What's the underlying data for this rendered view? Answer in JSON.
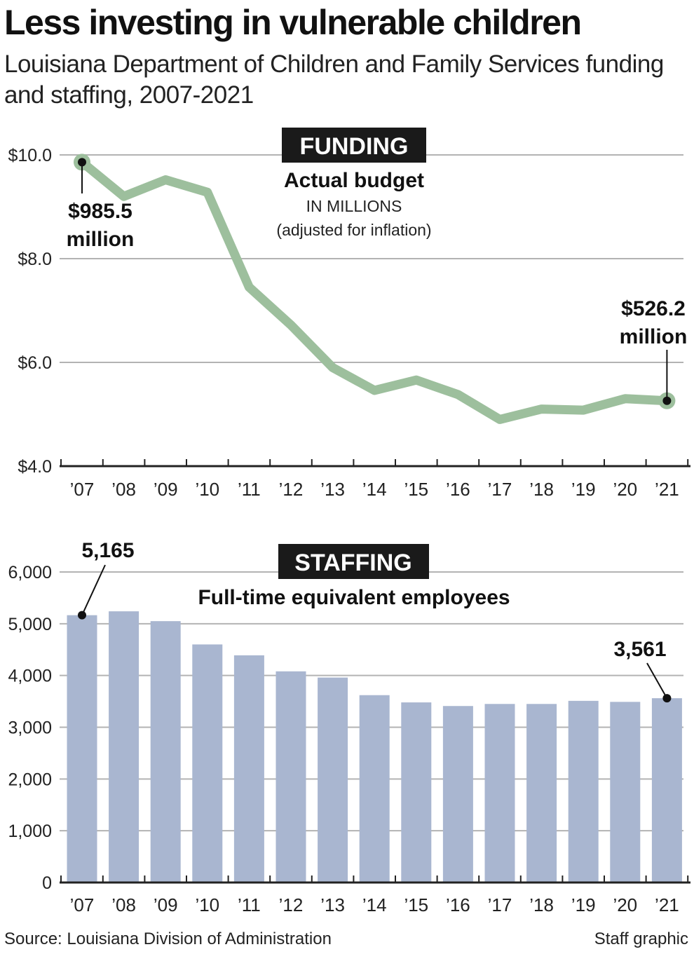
{
  "header": {
    "title": "Less investing in vulnerable children",
    "subtitle": "Louisiana Department of Children and Family Services funding and staffing, 2007-2021"
  },
  "footer": {
    "source": "Source: Louisiana Division of Administration",
    "credit": "Staff graphic"
  },
  "colors": {
    "line": "#9dbf9d",
    "bar": "#a9b6d0",
    "tag_bg": "#1a1a1a",
    "grid": "#b3b3b3"
  },
  "chart_data": [
    {
      "type": "line",
      "title": "FUNDING",
      "subtitle": "Actual budget",
      "note_1": "IN MILLIONS",
      "note_2": "(adjusted for inflation)",
      "categories": [
        "’07",
        "’08",
        "’09",
        "’10",
        "’11",
        "’12",
        "’13",
        "’14",
        "’15",
        "’16",
        "’17",
        "’18",
        "’19",
        "’20",
        "’21"
      ],
      "y_ticks": [
        "$10.0",
        "$8.0",
        "$6.0",
        "$4.0"
      ],
      "ylim": [
        4.0,
        10.0
      ],
      "series": [
        {
          "values": [
            9.86,
            9.2,
            9.52,
            9.28,
            7.45,
            6.72,
            5.9,
            5.46,
            5.66,
            5.38,
            4.9,
            5.1,
            5.08,
            5.3,
            5.26
          ]
        }
      ],
      "annotations": [
        {
          "index": 0,
          "line1": "$985.5",
          "line2": "million"
        },
        {
          "index": 14,
          "line1": "$526.2",
          "line2": "million"
        }
      ],
      "grid": true
    },
    {
      "type": "bar",
      "title": "STAFFING",
      "subtitle": "Full-time equivalent employees",
      "categories": [
        "’07",
        "’08",
        "’09",
        "’10",
        "’11",
        "’12",
        "’13",
        "’14",
        "’15",
        "’16",
        "’17",
        "’18",
        "’19",
        "’20",
        "’21"
      ],
      "y_ticks": [
        "6,000",
        "5,000",
        "4,000",
        "3,000",
        "2,000",
        "1,000",
        "0"
      ],
      "ylim": [
        0,
        6000
      ],
      "values": [
        5165,
        5240,
        5050,
        4600,
        4390,
        4080,
        3960,
        3620,
        3480,
        3410,
        3450,
        3450,
        3510,
        3490,
        3561
      ],
      "annotations": [
        {
          "index": 0,
          "label": "5,165"
        },
        {
          "index": 14,
          "label": "3,561"
        }
      ],
      "grid": true
    }
  ]
}
